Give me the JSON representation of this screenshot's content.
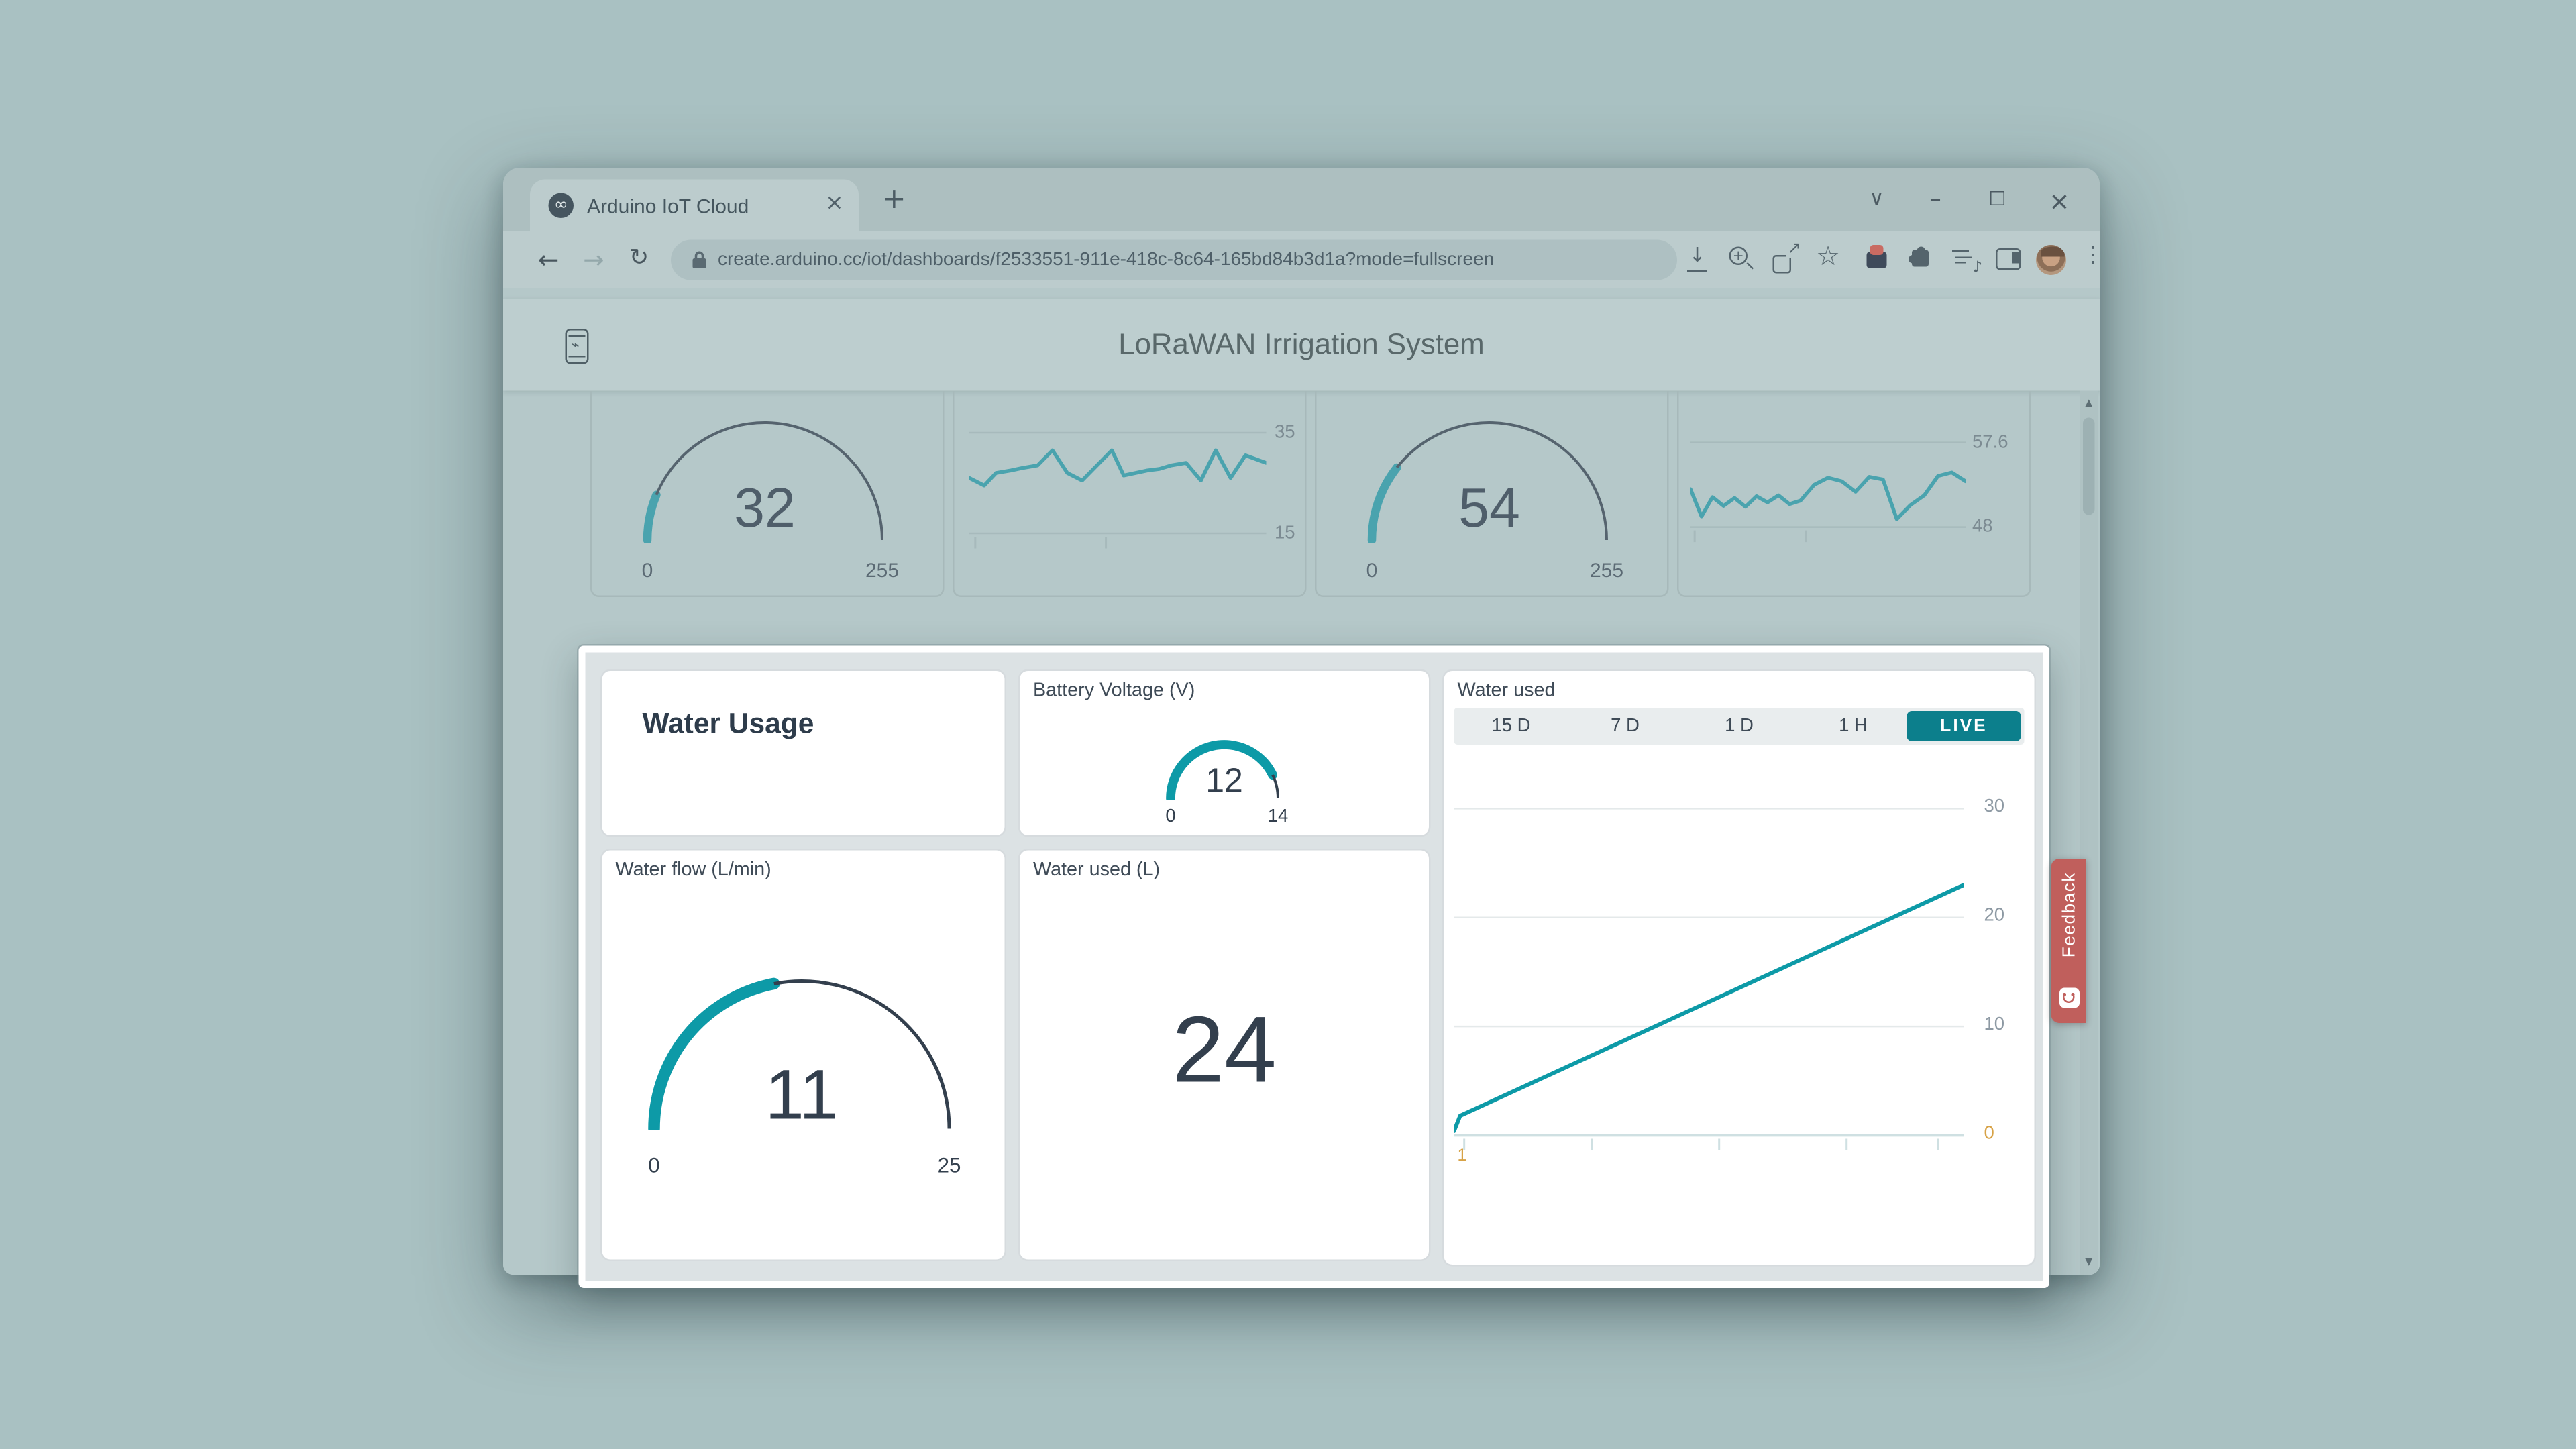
{
  "colors": {
    "accent": "#0d9aa7",
    "accent_dim": "#4aa3ae",
    "gauge_dark": "#333f4d",
    "gauge_dark_dim": "#55636e",
    "live_bg": "#0c7f8c",
    "feedback_bg": "#c05f5c",
    "axis_orange": "#d7a246",
    "highlight_border": "#ffffff"
  },
  "browser": {
    "tab_title": "Arduino IoT Cloud",
    "url": "create.arduino.cc/iot/dashboards/f2533551-911e-418c-8c64-165bd84b3d1a?mode=fullscreen"
  },
  "header": {
    "title": "LoRaWAN Irrigation System"
  },
  "dashboard": {
    "group_title": "Water Usage",
    "ranges": [
      "15 D",
      "7 D",
      "1 D",
      "1 H"
    ],
    "live_label": "LIVE"
  },
  "feedback": {
    "label": "Feedback"
  },
  "glyphs": {
    "infinity": "∞",
    "close": "×",
    "plus": "+",
    "chevron_down": "∨",
    "minimize": "–",
    "maximize": "□",
    "back": "←",
    "forward": "→",
    "reload": "↻",
    "star": "☆",
    "kebab": "⋮",
    "note": "♪",
    "arrow_down": "↓",
    "arrow_up_right": "↗",
    "scroll_up": "▲",
    "scroll_down": "▼"
  },
  "chart_data": [
    {
      "id": "gauge-top-1",
      "type": "gauge",
      "value": 32,
      "min": 0,
      "max": 255
    },
    {
      "id": "line-top-1",
      "type": "line",
      "ylim": [
        11,
        39
      ],
      "gridlines": [
        35,
        15
      ],
      "axis_at": 15,
      "x_ticks": [
        0.02,
        0.46
      ],
      "x": [
        0,
        0.05,
        0.09,
        0.14,
        0.18,
        0.23,
        0.28,
        0.33,
        0.38,
        0.43,
        0.48,
        0.52,
        0.56,
        0.6,
        0.64,
        0.68,
        0.73,
        0.78,
        0.83,
        0.88,
        0.93,
        1
      ],
      "values": [
        26,
        24.5,
        27,
        27.5,
        28,
        28.5,
        31.5,
        27,
        25.5,
        28.5,
        31.5,
        26.5,
        27,
        27.5,
        27.8,
        28.5,
        29,
        25.5,
        31.5,
        26,
        30.5,
        29
      ]
    },
    {
      "id": "gauge-top-2",
      "type": "gauge",
      "value": 54,
      "min": 0,
      "max": 255
    },
    {
      "id": "line-top-2",
      "type": "line",
      "ylim": [
        45,
        61
      ],
      "gridlines": [
        57.6,
        48
      ],
      "axis_at": 48,
      "x_ticks": [
        0.015,
        0.42
      ],
      "x": [
        0,
        0.04,
        0.08,
        0.12,
        0.16,
        0.2,
        0.24,
        0.28,
        0.32,
        0.36,
        0.4,
        0.45,
        0.5,
        0.55,
        0.6,
        0.65,
        0.7,
        0.75,
        0.8,
        0.85,
        0.9,
        0.95,
        1
      ],
      "values": [
        52.3,
        49.2,
        51.4,
        50.4,
        51.3,
        50.3,
        51.5,
        50.8,
        51.6,
        50.6,
        51,
        52.8,
        53.6,
        53.2,
        52,
        53.7,
        53.4,
        48.9,
        50.5,
        51.6,
        53.8,
        54.2,
        53.2
      ]
    },
    {
      "id": "battery-voltage",
      "type": "gauge",
      "title": "Battery Voltage (V)",
      "value": 12,
      "min": 0,
      "max": 14
    },
    {
      "id": "water-flow",
      "type": "gauge",
      "title": "Water flow (L/min)",
      "value": 11,
      "min": 0,
      "max": 25
    },
    {
      "id": "water-used-total",
      "type": "value",
      "title": "Water used (L)",
      "value": 24
    },
    {
      "id": "water-used-live",
      "type": "line",
      "title": "Water used",
      "ylim": [
        0,
        34.8
      ],
      "gridlines": [
        30,
        20,
        10
      ],
      "axis_at": 0,
      "axis_line": true,
      "y_axis_labels": [
        "30",
        "20",
        "10",
        "0"
      ],
      "x_axis_stub": "1",
      "x_ticks": [
        0.02,
        0.27,
        0.52,
        0.77,
        0.95
      ],
      "x": [
        0,
        0.012,
        1
      ],
      "values": [
        0.4,
        1.8,
        23
      ]
    }
  ]
}
